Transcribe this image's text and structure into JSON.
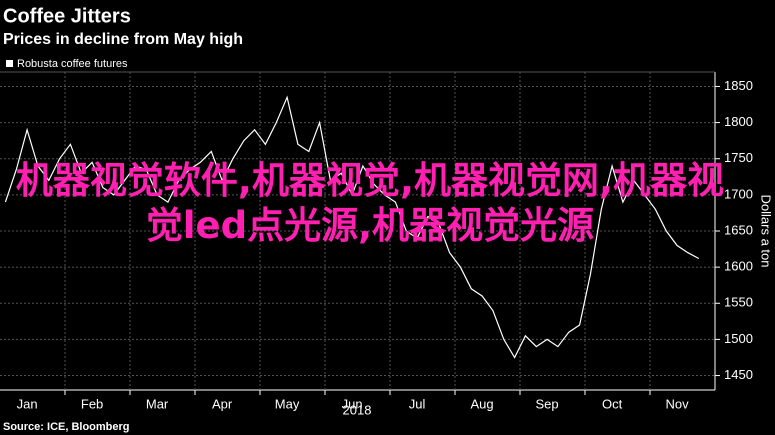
{
  "chart_data": {
    "type": "line",
    "title": "Coffee Jitters",
    "subtitle": "Prices in decline from May high",
    "y_label": "Dollars a ton",
    "x_label": "2018",
    "source": "Source: ICE, Bloomberg",
    "annotation": "机器视觉软件,机器视觉,机器视觉网,机器视觉led点光源,机器视觉光源",
    "categories": [
      null,
      null,
      "Jan",
      null,
      null,
      null,
      null,
      null,
      "Feb",
      null,
      null,
      null,
      null,
      null,
      "Mar",
      null,
      null,
      null,
      null,
      null,
      "Apr",
      null,
      null,
      null,
      null,
      null,
      "May",
      null,
      null,
      null,
      null,
      null,
      "Jun",
      null,
      null,
      null,
      null,
      null,
      "Jul",
      null,
      null,
      null,
      null,
      null,
      "Aug",
      null,
      null,
      null,
      null,
      null,
      "Sep",
      null,
      null,
      null,
      null,
      null,
      "Oct",
      null,
      null,
      null,
      null,
      null,
      "Nov",
      null,
      null,
      null
    ],
    "series": [
      {
        "name": "Robusta coffee futures",
        "color": "#ffffff",
        "values": [
          1690,
          1735,
          1790,
          1740,
          1720,
          1750,
          1770,
          1730,
          1745,
          1710,
          1700,
          1720,
          1740,
          1735,
          1700,
          1690,
          1720,
          1735,
          1745,
          1760,
          1720,
          1750,
          1775,
          1790,
          1770,
          1800,
          1835,
          1770,
          1760,
          1800,
          1720,
          1730,
          1700,
          1740,
          1715,
          1700,
          1690,
          1650,
          1640,
          1670,
          1660,
          1620,
          1600,
          1570,
          1560,
          1540,
          1500,
          1475,
          1505,
          1490,
          1500,
          1490,
          1510,
          1520,
          1590,
          1680,
          1740,
          1690,
          1720,
          1700,
          1680,
          1650,
          1630,
          1620,
          1612,
          null
        ]
      }
    ],
    "ylim": [
      1430,
      1870
    ],
    "yticks": [
      1450,
      1500,
      1550,
      1600,
      1650,
      1700,
      1750,
      1800,
      1850
    ],
    "grid": true
  }
}
